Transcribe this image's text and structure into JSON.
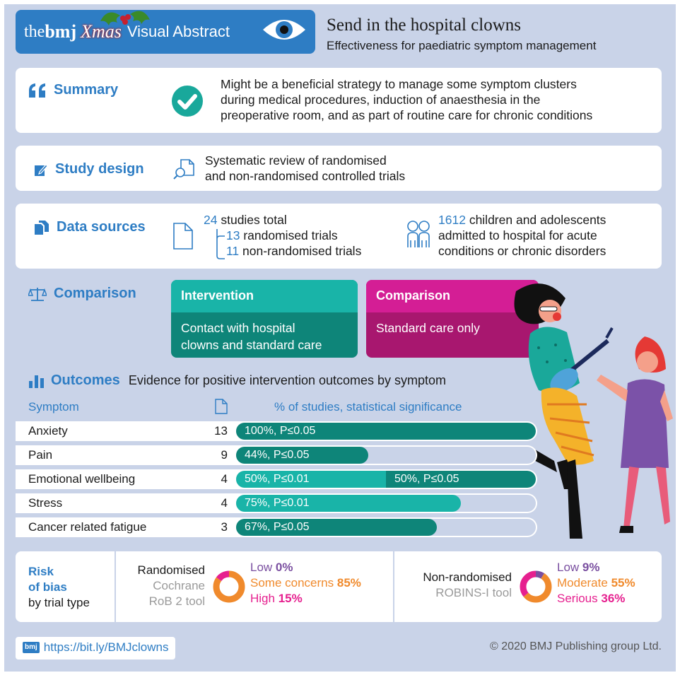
{
  "header": {
    "brand_the": "the",
    "brand_bmj": "bmj",
    "brand_xmas": "Xmas",
    "badge_label": "Visual Abstract",
    "title": "Send in the hospital clowns",
    "subtitle": "Effectiveness for paediatric symptom management"
  },
  "summary": {
    "label": "Summary",
    "text_lines": [
      "Might be a beneficial strategy to manage some symptom clusters",
      "during medical procedures, induction of anaesthesia in the",
      "preoperative room, and as part of routine care for chronic conditions"
    ]
  },
  "study_design": {
    "label": "Study design",
    "text_lines": [
      "Systematic review of randomised",
      "and non-randomised controlled trials"
    ]
  },
  "data_sources": {
    "label": "Data sources",
    "studies_total_num": "24",
    "studies_total_text": "studies total",
    "randomised_num": "13",
    "randomised_text": "randomised trials",
    "nonrandomised_num": "11",
    "nonrandomised_text": "non-randomised trials",
    "participants_num": "1612",
    "participants_line1": "children and adolescents",
    "participants_line2": "admitted to hospital for acute",
    "participants_line3": "conditions or chronic disorders"
  },
  "comparison": {
    "label": "Comparison",
    "intervention_title": "Intervention",
    "intervention_line1": "Contact with hospital",
    "intervention_line2": "clowns and standard care",
    "comparison_title": "Comparison",
    "comparison_text": "Standard care only"
  },
  "outcomes": {
    "label": "Outcomes",
    "description": "Evidence for positive intervention outcomes by symptom",
    "col_symptom": "Symptom",
    "col_percent": "% of studies, statistical significance",
    "rows": [
      {
        "symptom": "Anxiety",
        "n": "13",
        "segments": [
          {
            "label": "100%, P≤0.05",
            "fraction": 1.0,
            "color": "#0e8579"
          }
        ]
      },
      {
        "symptom": "Pain",
        "n": "9",
        "segments": [
          {
            "label": "44%, P≤0.05",
            "fraction": 0.44,
            "color": "#0e8579"
          }
        ]
      },
      {
        "symptom": "Emotional wellbeing",
        "n": "4",
        "segments": [
          {
            "label": "50%, P≤0.01",
            "fraction": 0.5,
            "color": "#19b4a8"
          },
          {
            "label": "50%, P≤0.05",
            "fraction": 0.5,
            "color": "#0e8579"
          }
        ]
      },
      {
        "symptom": "Stress",
        "n": "4",
        "segments": [
          {
            "label": "75%, P≤0.01",
            "fraction": 0.75,
            "color": "#19b4a8"
          }
        ]
      },
      {
        "symptom": "Cancer related fatigue",
        "n": "3",
        "segments": [
          {
            "label": "67%, P≤0.05",
            "fraction": 0.67,
            "color": "#0e8579"
          }
        ]
      }
    ]
  },
  "risk_of_bias": {
    "title_line1": "Risk",
    "title_line2": "of bias",
    "title_line3": "by trial type",
    "randomised": {
      "name": "Randomised",
      "tool_line1": "Cochrane",
      "tool_line2": "RoB 2 tool",
      "low_label": "Low",
      "low_value": "0%",
      "low_fraction": 0.0,
      "mid_label": "Some concerns",
      "mid_value": "85%",
      "mid_fraction": 0.85,
      "high_label": "High",
      "high_value": "15%",
      "high_fraction": 0.15
    },
    "nonrandomised": {
      "name": "Non-randomised",
      "tool_line1": "ROBINS-I tool",
      "low_label": "Low",
      "low_value": "9%",
      "low_fraction": 0.09,
      "mid_label": "Moderate",
      "mid_value": "55%",
      "mid_fraction": 0.55,
      "high_label": "Serious",
      "high_value": "36%",
      "high_fraction": 0.36
    }
  },
  "footer": {
    "url": "https://bit.ly/BMJclowns",
    "url_badge": "bmj",
    "copyright": "© 2020 BMJ Publishing group Ltd."
  },
  "colors": {
    "brand_blue": "#2e7dc4",
    "teal_dark": "#0e8579",
    "teal_light": "#19b4a8",
    "magenta": "#c21a8c",
    "orange": "#f08a2c",
    "purple": "#7a4fa0",
    "pink": "#e6208f",
    "background": "#c9d3e8"
  }
}
